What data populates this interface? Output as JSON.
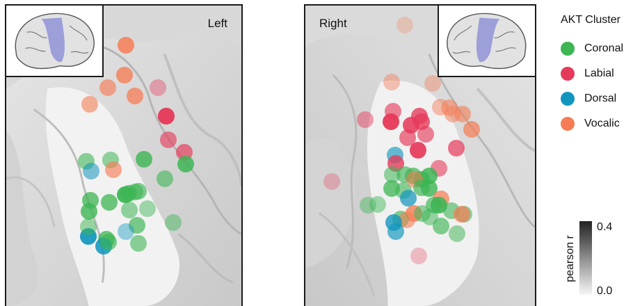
{
  "panels": {
    "left_label": "Left",
    "right_label": "Right"
  },
  "legend": {
    "title": "AKT Cluster",
    "items": [
      {
        "label": "Coronal",
        "color": "#3cb553"
      },
      {
        "label": "Labial",
        "color": "#e63a5a"
      },
      {
        "label": "Dorsal",
        "color": "#1296be"
      },
      {
        "label": "Vocalic",
        "color": "#f57c54"
      }
    ]
  },
  "colorbar": {
    "title": "pearson r",
    "max_label": "0.4",
    "min_label": "0.0",
    "range": [
      0.0,
      0.4
    ]
  },
  "electrodes": {
    "left": [
      {
        "cluster": "Vocalic",
        "r": 0.32
      },
      {
        "cluster": "Vocalic",
        "r": 0.3
      },
      {
        "cluster": "Vocalic",
        "r": 0.22
      },
      {
        "cluster": "Vocalic",
        "r": 0.28
      },
      {
        "cluster": "Vocalic",
        "r": 0.2
      },
      {
        "cluster": "Labial",
        "r": 0.1
      },
      {
        "cluster": "Labial",
        "r": 0.16
      },
      {
        "cluster": "Labial",
        "r": 0.36
      },
      {
        "cluster": "Labial",
        "r": 0.22
      },
      {
        "cluster": "Labial",
        "r": 0.24
      },
      {
        "cluster": "Coronal",
        "r": 0.2
      },
      {
        "cluster": "Coronal",
        "r": 0.18
      },
      {
        "cluster": "Coronal",
        "r": 0.3
      },
      {
        "cluster": "Coronal",
        "r": 0.32
      },
      {
        "cluster": "Coronal",
        "r": 0.2
      },
      {
        "cluster": "Vocalic",
        "r": 0.22
      },
      {
        "cluster": "Dorsal",
        "r": 0.18
      },
      {
        "cluster": "Coronal",
        "r": 0.26
      },
      {
        "cluster": "Coronal",
        "r": 0.2
      },
      {
        "cluster": "Coronal",
        "r": 0.36
      },
      {
        "cluster": "Coronal",
        "r": 0.22
      },
      {
        "cluster": "Coronal",
        "r": 0.28
      },
      {
        "cluster": "Coronal",
        "r": 0.28
      },
      {
        "cluster": "Coronal",
        "r": 0.14
      },
      {
        "cluster": "Coronal",
        "r": 0.3
      },
      {
        "cluster": "Coronal",
        "r": 0.18
      },
      {
        "cluster": "Coronal",
        "r": 0.24
      },
      {
        "cluster": "Coronal",
        "r": 0.14
      },
      {
        "cluster": "Dorsal",
        "r": 0.12
      },
      {
        "cluster": "Coronal",
        "r": 0.28
      },
      {
        "cluster": "Coronal",
        "r": 0.2
      },
      {
        "cluster": "Dorsal",
        "r": 0.36
      },
      {
        "cluster": "Dorsal",
        "r": 0.34
      },
      {
        "cluster": "Coronal",
        "r": 0.24
      },
      {
        "cluster": "Coronal",
        "r": 0.16
      }
    ],
    "right": [
      {
        "cluster": "Vocalic",
        "r": 0.05
      },
      {
        "cluster": "Vocalic",
        "r": 0.12
      },
      {
        "cluster": "Vocalic",
        "r": 0.1
      },
      {
        "cluster": "Vocalic",
        "r": 0.14
      },
      {
        "cluster": "Vocalic",
        "r": 0.18
      },
      {
        "cluster": "Vocalic",
        "r": 0.16
      },
      {
        "cluster": "Vocalic",
        "r": 0.2
      },
      {
        "cluster": "Vocalic",
        "r": 0.26
      },
      {
        "cluster": "Labial",
        "r": 0.14
      },
      {
        "cluster": "Labial",
        "r": 0.22
      },
      {
        "cluster": "Labial",
        "r": 0.3
      },
      {
        "cluster": "Labial",
        "r": 0.38
      },
      {
        "cluster": "Labial",
        "r": 0.34
      },
      {
        "cluster": "Labial",
        "r": 0.3
      },
      {
        "cluster": "Labial",
        "r": 0.22
      },
      {
        "cluster": "Labial",
        "r": 0.36
      },
      {
        "cluster": "Labial",
        "r": 0.24
      },
      {
        "cluster": "Labial",
        "r": 0.26
      },
      {
        "cluster": "Dorsal",
        "r": 0.22
      },
      {
        "cluster": "Labial",
        "r": 0.3
      },
      {
        "cluster": "Labial",
        "r": 0.2
      },
      {
        "cluster": "Labial",
        "r": 0.06
      },
      {
        "cluster": "Coronal",
        "r": 0.18
      },
      {
        "cluster": "Coronal",
        "r": 0.22
      },
      {
        "cluster": "Coronal",
        "r": 0.26
      },
      {
        "cluster": "Coronal",
        "r": 0.3
      },
      {
        "cluster": "Coronal",
        "r": 0.32
      },
      {
        "cluster": "Coronal",
        "r": 0.2
      },
      {
        "cluster": "Vocalic",
        "r": 0.18
      },
      {
        "cluster": "Coronal",
        "r": 0.28
      },
      {
        "cluster": "Coronal",
        "r": 0.12
      },
      {
        "cluster": "Coronal",
        "r": 0.14
      },
      {
        "cluster": "Dorsal",
        "r": 0.26
      },
      {
        "cluster": "Coronal",
        "r": 0.24
      },
      {
        "cluster": "Coronal",
        "r": 0.3
      },
      {
        "cluster": "Vocalic",
        "r": 0.26
      },
      {
        "cluster": "Vocalic",
        "r": 0.3
      },
      {
        "cluster": "Coronal",
        "r": 0.22
      },
      {
        "cluster": "Coronal",
        "r": 0.18
      },
      {
        "cluster": "Coronal",
        "r": 0.24
      },
      {
        "cluster": "Vocalic",
        "r": 0.2
      },
      {
        "cluster": "Coronal",
        "r": 0.16
      },
      {
        "cluster": "Dorsal",
        "r": 0.3
      },
      {
        "cluster": "Coronal",
        "r": 0.34
      },
      {
        "cluster": "Coronal",
        "r": 0.2
      },
      {
        "cluster": "Coronal",
        "r": 0.18
      },
      {
        "cluster": "Dorsal",
        "r": 0.24
      },
      {
        "cluster": "Labial",
        "r": 0.06
      },
      {
        "cluster": "Vocalic",
        "r": 0.26
      },
      {
        "cluster": "Coronal",
        "r": 0.22
      },
      {
        "cluster": "Coronal",
        "r": 0.16
      }
    ]
  }
}
